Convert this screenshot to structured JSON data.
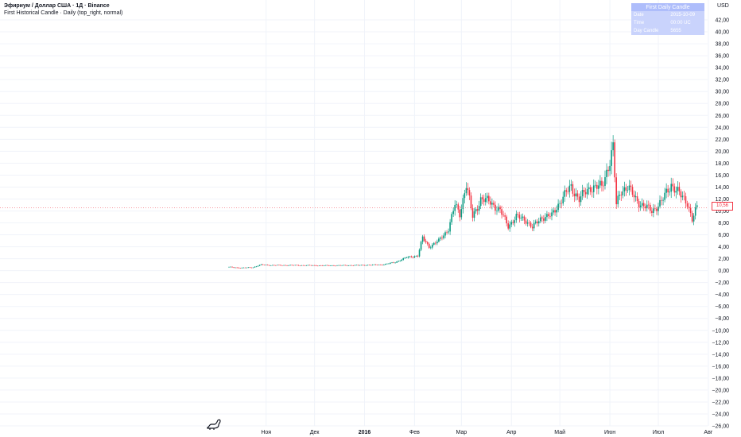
{
  "header": {
    "symbol_line": "Эфириум / Доллар США · 1Д · Binance",
    "indicator_line": "First Historical Candle · Daily (top_right, normal)"
  },
  "currency": "USD",
  "info_table": {
    "title": "First Daily Candle",
    "rows": [
      {
        "label": "Date",
        "value": "2015-10-09"
      },
      {
        "label": "Time",
        "value": "00:00 UC"
      },
      {
        "label": "Day Candle",
        "value": "5655"
      }
    ]
  },
  "last_price": "10,56",
  "colors": {
    "up": "#089981",
    "down": "#f23645",
    "grid": "#f0f3fa",
    "table_head": "#aebdfb",
    "table_row": "#c9d3fc"
  },
  "logo_icon": "tradingview-logo-icon",
  "chart_data": {
    "type": "candlestick",
    "title": "Эфириум / Доллар США · 1Д · Binance",
    "ylim": [
      -26,
      44
    ],
    "y_ticks": [
      "42,00",
      "40,00",
      "38,00",
      "36,00",
      "34,00",
      "32,00",
      "30,00",
      "28,00",
      "26,00",
      "24,00",
      "22,00",
      "20,00",
      "18,00",
      "16,00",
      "14,00",
      "12,00",
      "10,00",
      "8,00",
      "6,00",
      "4,00",
      "2,00",
      "0,00",
      "−2,00",
      "−4,00",
      "−6,00",
      "−8,00",
      "−10,00",
      "−12,00",
      "−14,00",
      "−16,00",
      "−18,00",
      "−20,00",
      "−22,00",
      "−24,00",
      "−26,00"
    ],
    "x_ticks": [
      {
        "label": "Ноя",
        "day": 23,
        "bold": false
      },
      {
        "label": "Дек",
        "day": 53,
        "bold": false
      },
      {
        "label": "2016",
        "day": 84,
        "bold": true
      },
      {
        "label": "Фев",
        "day": 115,
        "bold": false
      },
      {
        "label": "Мар",
        "day": 144,
        "bold": false
      },
      {
        "label": "Апр",
        "day": 175,
        "bold": false
      },
      {
        "label": "Май",
        "day": 205,
        "bold": false
      },
      {
        "label": "Июн",
        "day": 236,
        "bold": false
      },
      {
        "label": "Июл",
        "day": 266,
        "bold": false
      },
      {
        "label": "Авг",
        "day": 297,
        "bold": false
      }
    ],
    "close_series": [
      {
        "day": 0,
        "close": 0.6
      },
      {
        "day": 8,
        "close": 0.45
      },
      {
        "day": 15,
        "close": 0.55
      },
      {
        "day": 20,
        "close": 1.0
      },
      {
        "day": 26,
        "close": 0.9
      },
      {
        "day": 40,
        "close": 0.9
      },
      {
        "day": 60,
        "close": 0.85
      },
      {
        "day": 80,
        "close": 0.9
      },
      {
        "day": 95,
        "close": 1.0
      },
      {
        "day": 103,
        "close": 1.4
      },
      {
        "day": 110,
        "close": 2.2
      },
      {
        "day": 117,
        "close": 2.5
      },
      {
        "day": 120,
        "close": 5.5
      },
      {
        "day": 124,
        "close": 4.0
      },
      {
        "day": 130,
        "close": 5.0
      },
      {
        "day": 136,
        "close": 7.0
      },
      {
        "day": 140,
        "close": 11.0
      },
      {
        "day": 143,
        "close": 9.5
      },
      {
        "day": 147,
        "close": 14.5
      },
      {
        "day": 151,
        "close": 9.0
      },
      {
        "day": 156,
        "close": 12.0
      },
      {
        "day": 162,
        "close": 11.5
      },
      {
        "day": 168,
        "close": 10.0
      },
      {
        "day": 173,
        "close": 7.5
      },
      {
        "day": 178,
        "close": 9.0
      },
      {
        "day": 184,
        "close": 8.5
      },
      {
        "day": 188,
        "close": 7.2
      },
      {
        "day": 194,
        "close": 9.0
      },
      {
        "day": 200,
        "close": 9.2
      },
      {
        "day": 206,
        "close": 12.0
      },
      {
        "day": 212,
        "close": 14.0
      },
      {
        "day": 217,
        "close": 12.0
      },
      {
        "day": 224,
        "close": 14.0
      },
      {
        "day": 231,
        "close": 14.0
      },
      {
        "day": 236,
        "close": 18.5
      },
      {
        "day": 238,
        "close": 20.5
      },
      {
        "day": 240,
        "close": 11.0
      },
      {
        "day": 243,
        "close": 13.5
      },
      {
        "day": 247,
        "close": 14.0
      },
      {
        "day": 252,
        "close": 12.0
      },
      {
        "day": 256,
        "close": 11.0
      },
      {
        "day": 262,
        "close": 10.0
      },
      {
        "day": 268,
        "close": 11.5
      },
      {
        "day": 274,
        "close": 14.5
      },
      {
        "day": 280,
        "close": 12.5
      },
      {
        "day": 284,
        "close": 11.5
      },
      {
        "day": 287,
        "close": 8.5
      },
      {
        "day": 290,
        "close": 10.56
      }
    ]
  }
}
